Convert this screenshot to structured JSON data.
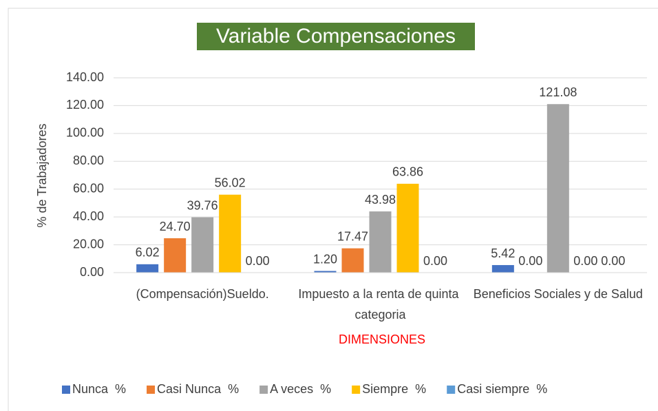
{
  "chart_data": {
    "type": "bar",
    "title": "Variable Compensaciones",
    "x_label": "DIMENSIONES",
    "y_label": "% de Trabajadores",
    "categories": [
      "(Compensación)Sueldo.",
      "Impuesto a la renta de quinta categoria",
      "Beneficios Sociales  y de Salud"
    ],
    "series": [
      {
        "name": "Nunca  %",
        "color": "#4472c4",
        "values": [
          6.02,
          1.2,
          5.42
        ],
        "value_labels": [
          "6.02",
          "1.20",
          "5.42"
        ]
      },
      {
        "name": "Casi Nunca  %",
        "color": "#ed7d31",
        "values": [
          24.7,
          17.47,
          0
        ],
        "value_labels": [
          "24.70",
          "17.47",
          "0.00"
        ]
      },
      {
        "name": "A veces  %",
        "color": "#a5a5a5",
        "values": [
          39.76,
          43.98,
          121.08
        ],
        "value_labels": [
          "39.76",
          "43.98",
          "121.08"
        ]
      },
      {
        "name": "Siempre  %",
        "color": "#ffc000",
        "values": [
          56.02,
          63.86,
          0
        ],
        "value_labels": [
          "56.02",
          "63.86",
          "0.00"
        ]
      },
      {
        "name": "Casi siempre  %",
        "color": "#5b9bd5",
        "values": [
          0,
          0,
          0
        ],
        "value_labels": [
          "0.00",
          "0.00",
          "0.00"
        ]
      }
    ],
    "ylim": [
      0,
      140
    ],
    "yticks": [
      {
        "value": 0,
        "label": "0.00"
      },
      {
        "value": 20,
        "label": "20.00"
      },
      {
        "value": 40,
        "label": "40.00"
      },
      {
        "value": 60,
        "label": "60.00"
      },
      {
        "value": 80,
        "label": "80.00"
      },
      {
        "value": 100,
        "label": "100.00"
      },
      {
        "value": 120,
        "label": "120.00"
      },
      {
        "value": 140,
        "label": "140.00"
      }
    ],
    "grid": true,
    "legend": "bottom"
  }
}
